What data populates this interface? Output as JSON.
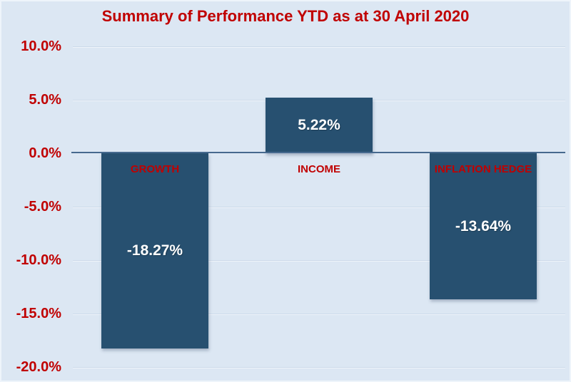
{
  "chart_data": {
    "type": "bar",
    "title": "Summary of Performance YTD as at 30 April 2020",
    "categories": [
      "GROWTH",
      "INCOME",
      "INFLATION HEDGE"
    ],
    "values": [
      -18.27,
      5.22,
      -13.64
    ],
    "value_labels": [
      "-18.27%",
      "5.22%",
      "-13.64%"
    ],
    "xlabel": "",
    "ylabel": "",
    "ylim": [
      -20,
      10
    ],
    "ytick_interval": 5,
    "yticks": [
      {
        "value": 10,
        "label": "10.0%"
      },
      {
        "value": 5,
        "label": "5.0%"
      },
      {
        "value": 0,
        "label": "0.0%"
      },
      {
        "value": -5,
        "label": "-5.0%"
      },
      {
        "value": -10,
        "label": "-10.0%"
      },
      {
        "value": -15,
        "label": "-15.0%"
      },
      {
        "value": -20,
        "label": "-20.0%"
      }
    ],
    "grid": true,
    "legend": false,
    "colors": {
      "background": "#dce7f3",
      "bar_fill": "#275070",
      "title_text": "#c00000",
      "axis_tick_text": "#c00000",
      "category_label_text": "#c00000",
      "value_label_text": "#ffffff",
      "gridline": "#ccdaea",
      "zero_axis_line": "#46698e"
    }
  }
}
